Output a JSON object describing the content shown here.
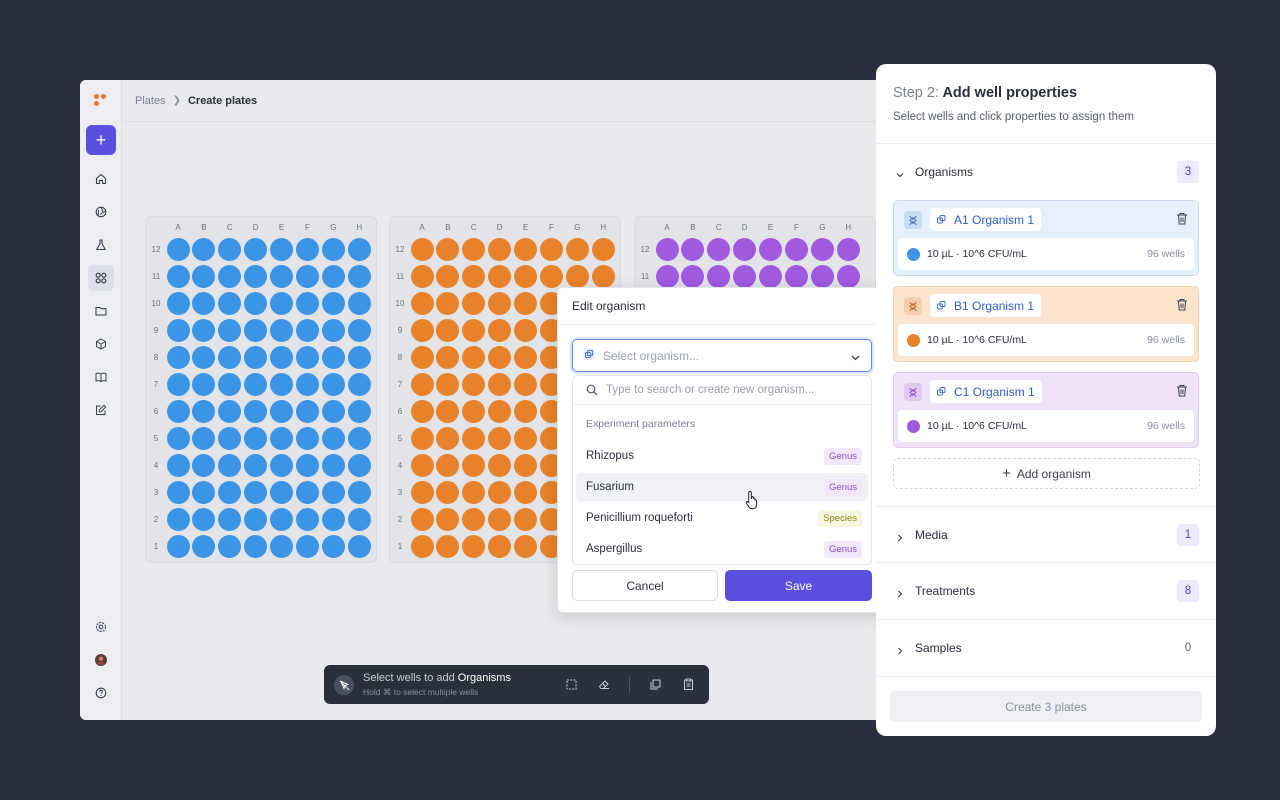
{
  "colors": {
    "accent": "#5b4fe0",
    "blue_well": "#3b94e6",
    "orange_well": "#e8822a",
    "purple_well": "#a05ae0"
  },
  "breadcrumb": {
    "root": "Plates",
    "current": "Create plates"
  },
  "plates": {
    "columns": [
      "A",
      "B",
      "C",
      "D",
      "E",
      "F",
      "G",
      "H"
    ],
    "rows": [
      "12",
      "11",
      "10",
      "9",
      "8",
      "7",
      "6",
      "5",
      "4",
      "3",
      "2",
      "1"
    ]
  },
  "toolbar": {
    "hint_prefix": "Select wells to add ",
    "hint_target": "Organisms",
    "hint_sub": "Hold ⌘ to select multiple wells"
  },
  "modal": {
    "title": "Edit organism",
    "select_placeholder": "Select organism...",
    "search_placeholder": "Type to search or create new organism...",
    "section_label": "Experiment parameters",
    "options": [
      {
        "label": "Rhizopus",
        "tag": "Genus"
      },
      {
        "label": "Fusarium",
        "tag": "Genus"
      },
      {
        "label": "Penicillium roqueforti",
        "tag": "Species"
      },
      {
        "label": "Aspergillus",
        "tag": "Genus"
      }
    ],
    "cancel_label": "Cancel",
    "save_label": "Save"
  },
  "panel": {
    "step": "Step 2:",
    "title": "Add well properties",
    "subtitle": "Select wells and click properties to assign them",
    "organisms": {
      "label": "Organisms",
      "count": "3",
      "items": [
        {
          "name": "A1 Organism 1",
          "volume": "10 µL",
          "conc": "10^6 CFU/mL",
          "wells": "96 wells"
        },
        {
          "name": "B1 Organism 1",
          "volume": "10 µL",
          "conc": "10^6 CFU/mL",
          "wells": "96 wells"
        },
        {
          "name": "C1 Organism 1",
          "volume": "10 µL",
          "conc": "10^6 CFU/mL",
          "wells": "96 wells"
        }
      ],
      "add_label": "Add organism"
    },
    "media": {
      "label": "Media",
      "count": "1"
    },
    "treatments": {
      "label": "Treatments",
      "count": "8"
    },
    "samples": {
      "label": "Samples",
      "count": "0"
    },
    "create_label": "Create 3 plates"
  }
}
